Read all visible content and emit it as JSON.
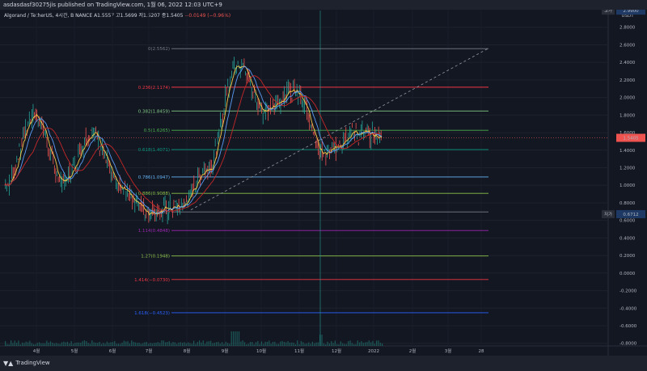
{
  "header": {
    "published": "asdasdasf30275jis published on TradingView.com, 1월 06, 2022 12:03 UTC+9",
    "symbol_line": "Algorand / TetherUS, 4시간, BINANCE",
    "ohlc": "A1.5557  고1.5699  저1.5207  종1.5405",
    "change": "−0.0149 (−0.96%)"
  },
  "footer": {
    "brand": "TradingView"
  },
  "chart_data": {
    "type": "line",
    "series": [
      {
        "values_monthly": [
          1.0,
          1.8,
          1.05,
          1.6,
          0.95,
          0.7,
          0.75,
          1.2,
          2.4,
          1.85,
          2.1,
          1.35,
          1.6,
          1.55
        ]
      }
    ],
    "x_ticks": [
      "4월",
      "5월",
      "6월",
      "7월",
      "8월",
      "9월",
      "10월",
      "11월",
      "12월",
      "2022",
      "2월",
      "3월",
      "28"
    ],
    "y_ticks": [
      "2.8000",
      "2.6000",
      "2.4000",
      "2.2000",
      "2.0000",
      "1.8000",
      "1.6000",
      "1.4000",
      "1.2000",
      "1.0000",
      "0.8000",
      "0.6000",
      "0.4000",
      "0.2000",
      "0.0000",
      "-0.2000",
      "-0.4000",
      "-0.6000",
      "-0.8000"
    ],
    "ylim": [
      -0.83,
      3.0
    ],
    "currency": "USDT",
    "high_marker": {
      "label": "고가",
      "value": "2.9900",
      "y": 2.99
    },
    "low_marker": {
      "label": "저가",
      "value": "0.6712",
      "y": 0.6712
    },
    "last_price": {
      "value": "1.5405",
      "y": 1.5405,
      "color": "#ef5350"
    },
    "fib_levels": [
      {
        "label": "0(2.5562)",
        "y": 2.5562,
        "color": "#787b86"
      },
      {
        "label": "0.236(2.1174)",
        "y": 2.1174,
        "color": "#f23645"
      },
      {
        "label": "0.382(1.8459)",
        "y": 1.8459,
        "color": "#81c784"
      },
      {
        "label": "0.5(1.6265)",
        "y": 1.6265,
        "color": "#4caf50"
      },
      {
        "label": "0.618(1.4071)",
        "y": 1.4071,
        "color": "#089981"
      },
      {
        "label": "0.786(1.0947)",
        "y": 1.0947,
        "color": "#64b5f6"
      },
      {
        "label": "0.886(0.9088)",
        "y": 0.9088,
        "color": "#8bc34a"
      },
      {
        "label": "1(0.6968)",
        "y": 0.6968,
        "color": "#787b86"
      },
      {
        "label": "1.114(0.4848)",
        "y": 0.4848,
        "color": "#9c27b0"
      },
      {
        "label": "1.27(0.1948)",
        "y": 0.1948,
        "color": "#8bc34a"
      },
      {
        "label": "1.414(−0.0730)",
        "y": -0.073,
        "color": "#f23645"
      },
      {
        "label": "1.618(−0.4523)",
        "y": -0.4523,
        "color": "#2962ff"
      }
    ]
  }
}
